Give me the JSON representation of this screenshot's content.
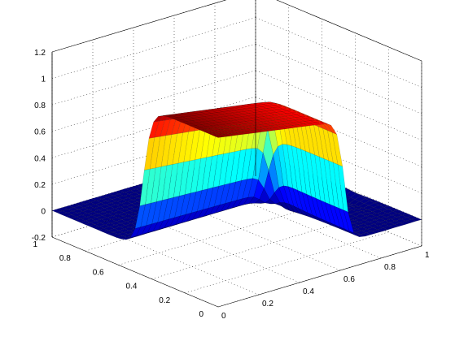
{
  "chart_data": {
    "type": "surface3d",
    "title": "",
    "xlabel": "",
    "ylabel": "",
    "zlabel": "",
    "x_ticks": [
      "0",
      "0.2",
      "0.4",
      "0.6",
      "0.8",
      "1"
    ],
    "y_ticks": [
      "0",
      "0.2",
      "0.4",
      "0.6",
      "0.8",
      "1"
    ],
    "z_ticks": [
      "-0.2",
      "0",
      "0.2",
      "0.4",
      "0.6",
      "0.8",
      "1",
      "1.2"
    ],
    "xlim": [
      0,
      1
    ],
    "ylim": [
      0,
      1
    ],
    "zlim": [
      -0.2,
      1.2
    ],
    "grid": true,
    "colormap": "jet",
    "surface": {
      "description_values": {
        "baseline_z": 0,
        "plateau_z_at_x0": 1.08,
        "plateau_z_at_x1": 0.82,
        "step_location_y": 0.45,
        "step_location_x": 0.62
      }
    }
  }
}
